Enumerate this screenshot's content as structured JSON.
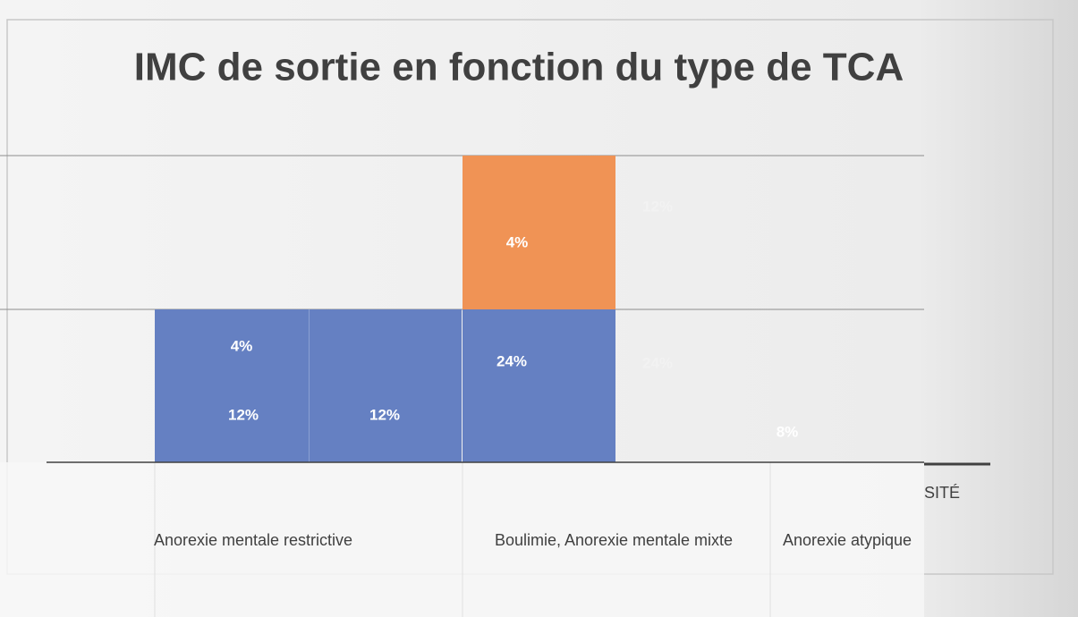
{
  "title": "IMC de sortie en fonction du type de TCA",
  "data_labels": [
    "4%",
    "12%",
    "12%",
    "4%",
    "24%",
    "12%",
    "24%",
    "8%"
  ],
  "categories": [
    "Anorexie mentale restrictive",
    "Boulimie, Anorexie mentale mixte",
    "Anorexie atypique"
  ],
  "fragment": "SITÉ"
}
